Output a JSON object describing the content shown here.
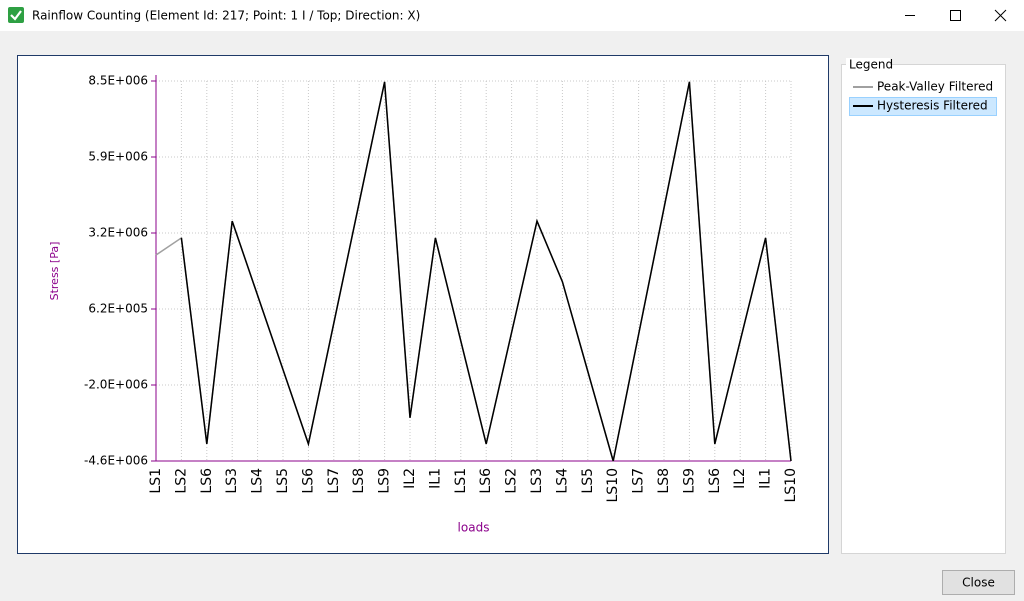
{
  "window": {
    "title": "Rainflow Counting (Element Id: 217; Point: 1 I / Top; Direction: X)",
    "close_button": "Close"
  },
  "legend": {
    "title": "Legend"
  },
  "chart_data": {
    "type": "line",
    "x_label": "loads",
    "y_label": "Stress [Pa]",
    "categories": [
      "LS1",
      "LS2",
      "LS6",
      "LS3",
      "LS4",
      "LS5",
      "LS6",
      "LS7",
      "LS8",
      "LS9",
      "IL2",
      "IL1",
      "LS1",
      "LS6",
      "LS2",
      "LS3",
      "LS4",
      "LS5",
      "LS10",
      "LS7",
      "LS8",
      "LS9",
      "LS6",
      "IL2",
      "IL1",
      "LS10"
    ],
    "series": [
      {
        "name": "Peak-Valley Filtered",
        "color": "#a0a0a0",
        "values": [
          2480000,
          3070000,
          -4030000,
          3650000,
          1090000,
          -1470000,
          -4030000,
          130000,
          4290000,
          8450000,
          -3130000,
          3070000,
          -480000,
          -4030000,
          -190000,
          3650000,
          1560000,
          -1530000,
          -4620000,
          -260000,
          4100000,
          8450000,
          -4030000,
          -480000,
          3070000,
          -4620000
        ]
      },
      {
        "name": "Hysteresis Filtered",
        "color": "#000000",
        "values": [
          null,
          3070000,
          -4030000,
          3650000,
          1090000,
          -1470000,
          -4030000,
          130000,
          4290000,
          8450000,
          -3130000,
          3070000,
          -480000,
          -4030000,
          -190000,
          3650000,
          1560000,
          -1530000,
          -4620000,
          -260000,
          4100000,
          8450000,
          -4030000,
          -480000,
          3070000,
          -4620000
        ]
      }
    ],
    "ylim": [
      -4620000,
      8480000
    ],
    "yticks": [
      {
        "value": -4620000,
        "label": "-4.6E+006"
      },
      {
        "value": -2000000,
        "label": "-2.0E+006"
      },
      {
        "value": 620000,
        "label": "6.2E+005"
      },
      {
        "value": 3240000,
        "label": "3.2E+006"
      },
      {
        "value": 5860000,
        "label": "5.9E+006"
      },
      {
        "value": 8480000,
        "label": "8.5E+006"
      }
    ],
    "grid": true
  }
}
